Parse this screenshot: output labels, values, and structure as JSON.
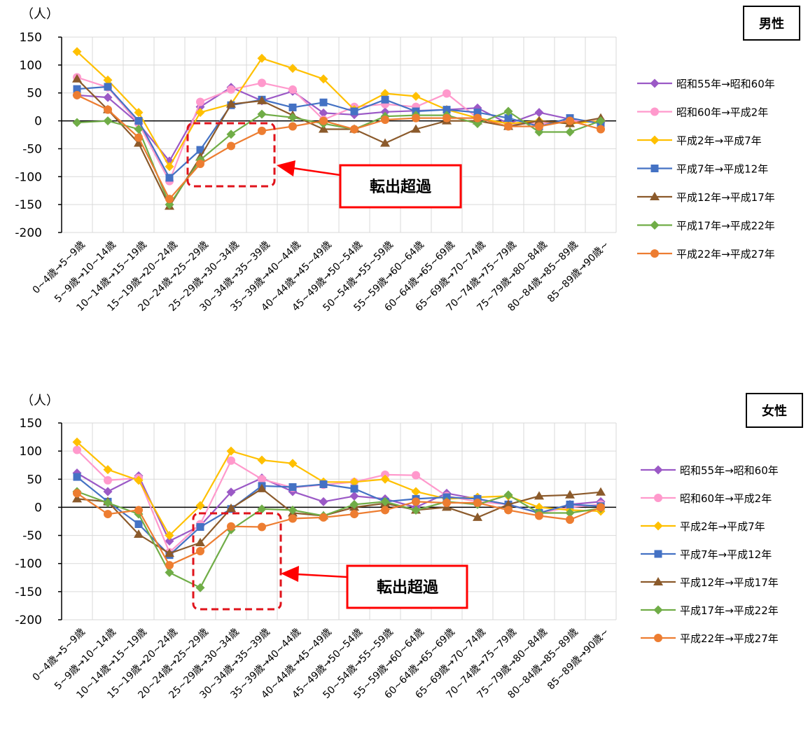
{
  "chart_data": [
    {
      "type": "line",
      "title": "男性",
      "ylabel": "（人）",
      "ylim": [
        -200,
        150
      ],
      "yticks": [
        150,
        100,
        50,
        0,
        -50,
        -100,
        -150,
        -200
      ],
      "grid": true,
      "legend_position": "right",
      "annotation": "転出超過",
      "categories": [
        "0~4歳→5~9歳",
        "5~9歳→10~14歳",
        "10~14歳→15~19歳",
        "15~19歳→20~24歳",
        "20~24歳→25~29歳",
        "25~29歳→30~34歳",
        "30~34歳→35~39歳",
        "35~39歳→40~44歳",
        "40~44歳→45~49歳",
        "45~49歳→50~54歳",
        "50~54歳→55~59歳",
        "55~59歳→60~64歳",
        "60~64歳→65~69歳",
        "65~69歳→70~74歳",
        "70~74歳→75~79歳",
        "75~79歳→80~84歳",
        "80~84歳→85~89歳",
        "85~89歳→90歳~"
      ],
      "series": [
        {
          "name": "昭和55年→昭和60年",
          "color": "#9B59C6",
          "marker": "diamond",
          "values": [
            46,
            42,
            -5,
            -72,
            25,
            60,
            36,
            53,
            14,
            11,
            16,
            18,
            20,
            23,
            -5,
            15,
            3,
            -3
          ]
        },
        {
          "name": "昭和60年→平成2年",
          "color": "#FF99CC",
          "marker": "circle",
          "values": [
            78,
            60,
            -5,
            -108,
            34,
            56,
            68,
            56,
            2,
            25,
            30,
            25,
            49,
            5,
            -5,
            -5,
            0,
            0
          ]
        },
        {
          "name": "平成2年→平成7年",
          "color": "#FFC000",
          "marker": "diamond",
          "values": [
            124,
            73,
            15,
            -82,
            15,
            30,
            112,
            94,
            75,
            20,
            49,
            44,
            20,
            5,
            -5,
            0,
            -5,
            0
          ]
        },
        {
          "name": "平成7年→平成12年",
          "color": "#4472C4",
          "marker": "square",
          "values": [
            57,
            61,
            0,
            -102,
            -52,
            28,
            38,
            24,
            33,
            17,
            38,
            17,
            20,
            15,
            5,
            -10,
            5,
            -5
          ]
        },
        {
          "name": "平成12年→平成17年",
          "color": "#8B5A2B",
          "marker": "triangle",
          "values": [
            75,
            20,
            -40,
            -153,
            -65,
            30,
            36,
            10,
            -15,
            -15,
            -40,
            -15,
            0,
            0,
            -10,
            0,
            -5,
            5
          ]
        },
        {
          "name": "平成17年→平成22年",
          "color": "#70AD47",
          "marker": "diamond",
          "values": [
            -3,
            0,
            -15,
            -150,
            -70,
            -24,
            12,
            6,
            -5,
            -15,
            8,
            10,
            10,
            -5,
            17,
            -20,
            -20,
            0
          ]
        },
        {
          "name": "平成22年→平成27年",
          "color": "#ED7D31",
          "marker": "circle",
          "values": [
            46,
            20,
            -30,
            -140,
            -77,
            -45,
            -18,
            -10,
            0,
            -15,
            2,
            5,
            5,
            5,
            -10,
            -10,
            0,
            -15
          ]
        }
      ]
    },
    {
      "type": "line",
      "title": "女性",
      "ylabel": "（人）",
      "ylim": [
        -200,
        150
      ],
      "yticks": [
        150,
        100,
        50,
        0,
        -50,
        -100,
        -150,
        -200
      ],
      "grid": true,
      "legend_position": "right",
      "annotation": "転出超過",
      "categories": [
        "0~4歳→5~9歳",
        "5~9歳→10~14歳",
        "10~14歳→15~19歳",
        "15~19歳→20~24歳",
        "20~24歳→25~29歳",
        "25~29歳→30~34歳",
        "30~34歳→35~39歳",
        "35~39歳→40~44歳",
        "40~44歳→45~49歳",
        "45~49歳→50~54歳",
        "50~54歳→55~59歳",
        "55~59歳→60~64歳",
        "60~64歳→65~69歳",
        "65~69歳→70~74歳",
        "70~74歳→75~79歳",
        "75~79歳→80~84歳",
        "80~84歳→85~89歳",
        "85~89歳→90歳~"
      ],
      "series": [
        {
          "name": "昭和55年→昭和60年",
          "color": "#9B59C6",
          "marker": "diamond",
          "values": [
            61,
            28,
            56,
            -60,
            -33,
            27,
            52,
            28,
            10,
            20,
            15,
            0,
            25,
            15,
            5,
            -10,
            5,
            10
          ]
        },
        {
          "name": "昭和60年→平成2年",
          "color": "#FF99CC",
          "marker": "circle",
          "values": [
            102,
            48,
            52,
            -80,
            -30,
            83,
            50,
            35,
            40,
            45,
            58,
            57,
            20,
            10,
            5,
            -10,
            0,
            5
          ]
        },
        {
          "name": "平成2年→平成7年",
          "color": "#FFC000",
          "marker": "diamond",
          "values": [
            116,
            67,
            48,
            -50,
            3,
            100,
            84,
            78,
            45,
            45,
            50,
            28,
            15,
            18,
            20,
            0,
            -5,
            -7
          ]
        },
        {
          "name": "平成7年→平成12年",
          "color": "#4472C4",
          "marker": "square",
          "values": [
            54,
            10,
            -30,
            -85,
            -35,
            -3,
            38,
            36,
            41,
            33,
            10,
            15,
            18,
            15,
            5,
            -10,
            5,
            2
          ]
        },
        {
          "name": "平成12年→平成17年",
          "color": "#8B5A2B",
          "marker": "triangle",
          "values": [
            15,
            10,
            -48,
            -82,
            -63,
            -2,
            33,
            -10,
            -15,
            0,
            7,
            -5,
            0,
            -18,
            5,
            20,
            22,
            27
          ]
        },
        {
          "name": "平成17年→平成22年",
          "color": "#70AD47",
          "marker": "diamond",
          "values": [
            28,
            8,
            -12,
            -116,
            -143,
            -40,
            -3,
            -5,
            -15,
            5,
            10,
            -5,
            10,
            5,
            22,
            -10,
            -10,
            -2
          ]
        },
        {
          "name": "平成22年→平成27年",
          "color": "#ED7D31",
          "marker": "circle",
          "values": [
            25,
            -12,
            -5,
            -103,
            -78,
            -34,
            -35,
            -20,
            -18,
            -12,
            -5,
            10,
            8,
            8,
            -5,
            -15,
            -22,
            0
          ]
        }
      ]
    }
  ]
}
